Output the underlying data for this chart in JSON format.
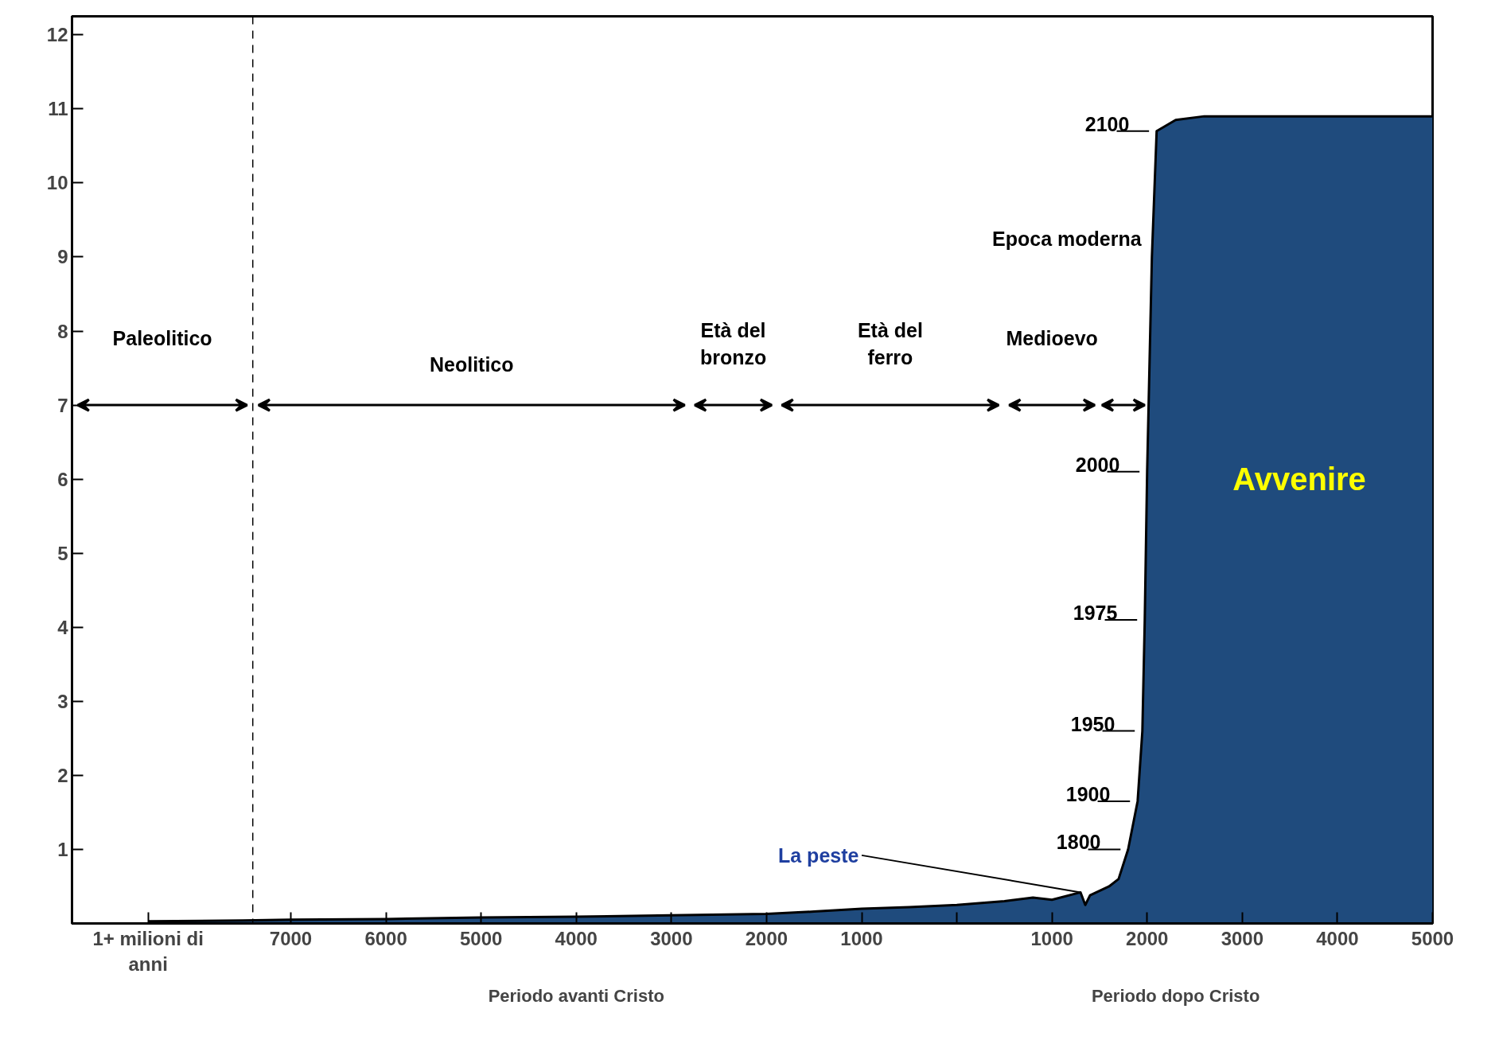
{
  "chart_data": {
    "type": "area",
    "x": [
      -8500,
      -7500,
      -7000,
      -6000,
      -5000,
      -4000,
      -3000,
      -2000,
      -1500,
      -1000,
      -500,
      0,
      500,
      800,
      1000,
      1300,
      1350,
      1400,
      1600,
      1700,
      1800,
      1900,
      1950,
      1975,
      2000,
      2050,
      2100,
      2300,
      2600,
      5000
    ],
    "series": [
      {
        "color": "#1f4b7d",
        "values": [
          0.03,
          0.04,
          0.05,
          0.06,
          0.08,
          0.09,
          0.11,
          0.13,
          0.16,
          0.2,
          0.22,
          0.25,
          0.3,
          0.35,
          0.32,
          0.42,
          0.25,
          0.38,
          0.5,
          0.6,
          1.0,
          1.65,
          2.6,
          4.1,
          6.1,
          9.0,
          10.7,
          10.85,
          10.9,
          10.9
        ]
      }
    ],
    "xlim": [
      -9300,
      5000
    ],
    "ylim": [
      0,
      12.25
    ],
    "xticks": [
      {
        "value": -8500,
        "label": "1+ milioni di anni"
      },
      {
        "value": -7000,
        "label": "7000"
      },
      {
        "value": -6000,
        "label": "6000"
      },
      {
        "value": -5000,
        "label": "5000"
      },
      {
        "value": -4000,
        "label": "4000"
      },
      {
        "value": -3000,
        "label": "3000"
      },
      {
        "value": -2000,
        "label": "2000"
      },
      {
        "value": -1000,
        "label": "1000"
      },
      {
        "value": 0,
        "label": null
      },
      1000,
      2000,
      3000,
      4000,
      5000
    ],
    "yticks": [
      1,
      2,
      3,
      4,
      5,
      6,
      7,
      8,
      9,
      10,
      11,
      12
    ],
    "grid": false,
    "ref_lines": [
      {
        "axis": "x",
        "value": -7400,
        "line_style": "dashed"
      }
    ],
    "annotations": [
      "Paleolitico",
      "Neolitico",
      "Età del bronzo",
      "Età del ferro",
      "Medioevo",
      "Epoca moderna",
      "Avvenire",
      "Periodo avanti Cristo",
      "Periodo dopo Cristo",
      {
        "text": "La peste",
        "x": 1300,
        "y": 0.42
      },
      {
        "text": "1800",
        "x": 1800,
        "y": 1.0
      },
      {
        "text": "1900",
        "x": 1900,
        "y": 1.65
      },
      {
        "text": "1950",
        "x": 1950,
        "y": 2.6
      },
      {
        "text": "1975",
        "x": 1975,
        "y": 4.1
      },
      {
        "text": "2000",
        "x": 2000,
        "y": 6.1
      },
      {
        "text": "2100",
        "x": 2100,
        "y": 10.7
      }
    ]
  }
}
